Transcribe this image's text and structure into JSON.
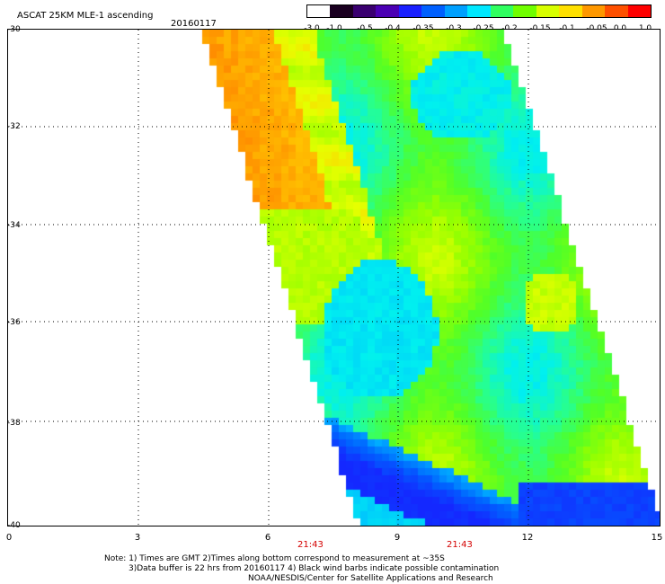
{
  "header": {
    "title": "ASCAT 25KM MLE-1 ascending",
    "date": "20160117"
  },
  "colorbar": {
    "ticks": [
      "-3.0",
      "-1.0",
      "-0.5",
      "-0.4",
      "-0.35",
      "-0.3",
      "-0.25",
      "-0.2",
      "-0.15",
      "-0.1",
      "-0.05",
      "0.0",
      "1.0"
    ],
    "colors": [
      "#ffffff",
      "#1a0020",
      "#3a0070",
      "#4b00b4",
      "#1a20ff",
      "#0060ff",
      "#00a0ff",
      "#00e8ff",
      "#30ff60",
      "#70ff00",
      "#d8ff00",
      "#ffe000",
      "#ff9800",
      "#ff5000",
      "#ff0000"
    ]
  },
  "axes": {
    "y_labels": [
      "-30",
      "-32",
      "-34",
      "-36",
      "-38",
      "-40"
    ],
    "x_labels": [
      "0",
      "3",
      "6",
      "9",
      "12",
      "15"
    ]
  },
  "time_labels": [
    "21:43",
    "21:43"
  ],
  "notes": {
    "line1": "Note: 1) Times are GMT 2)Times along bottom correspond to measurement at ~35S",
    "line2": "3)Data buffer is 22 hrs from 20160117 4) Black wind barbs indicate possible contamination",
    "line3": "NOAA/NESDIS/Center for Satellite Applications and Research"
  }
}
